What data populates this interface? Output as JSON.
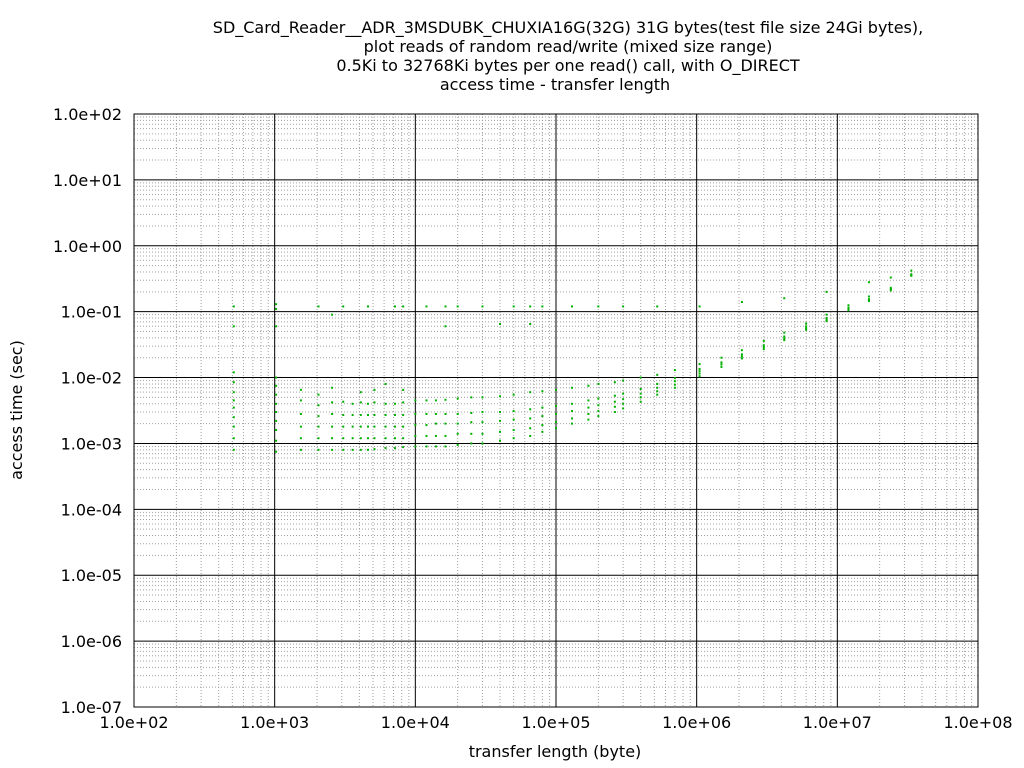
{
  "chart_data": {
    "type": "scatter",
    "title_lines": [
      "SD_Card_Reader__ADR_3MSDUBK_CHUXIA16G(32G) 31G bytes(test file size 24Gi bytes),",
      "plot reads of random read/write (mixed size range)",
      "0.5Ki to 32768Ki bytes per one read() call, with O_DIRECT",
      "access time - transfer length"
    ],
    "xlabel": "transfer length (byte)",
    "ylabel": "access time (sec)",
    "x_scale": "log",
    "y_scale": "log",
    "xlim": [
      100,
      100000000
    ],
    "ylim": [
      1e-07,
      100
    ],
    "x_ticks": [
      {
        "value": 100,
        "label": "1.0e+02"
      },
      {
        "value": 1000,
        "label": "1.0e+03"
      },
      {
        "value": 10000,
        "label": "1.0e+04"
      },
      {
        "value": 100000,
        "label": "1.0e+05"
      },
      {
        "value": 1000000,
        "label": "1.0e+06"
      },
      {
        "value": 10000000,
        "label": "1.0e+07"
      },
      {
        "value": 100000000,
        "label": "1.0e+08"
      }
    ],
    "y_ticks": [
      {
        "value": 1e-07,
        "label": "1.0e-07"
      },
      {
        "value": 1e-06,
        "label": "1.0e-06"
      },
      {
        "value": 1e-05,
        "label": "1.0e-05"
      },
      {
        "value": 0.0001,
        "label": "1.0e-04"
      },
      {
        "value": 0.001,
        "label": "1.0e-03"
      },
      {
        "value": 0.01,
        "label": "1.0e-02"
      },
      {
        "value": 0.1,
        "label": "1.0e-01"
      },
      {
        "value": 1,
        "label": "1.0e+00"
      },
      {
        "value": 10,
        "label": "1.0e+01"
      },
      {
        "value": 100,
        "label": "1.0e+02"
      }
    ],
    "grid": true,
    "point_color": "#00b000",
    "series": [
      {
        "points": [
          [
            512,
            0.0008
          ],
          [
            512,
            0.0012
          ],
          [
            512,
            0.0018
          ],
          [
            512,
            0.0025
          ],
          [
            512,
            0.0035
          ],
          [
            512,
            0.0045
          ],
          [
            512,
            0.006
          ],
          [
            512,
            0.0085
          ],
          [
            512,
            0.012
          ],
          [
            512,
            0.06
          ],
          [
            512,
            0.12
          ],
          [
            1024,
            0.00075
          ],
          [
            1024,
            0.0011
          ],
          [
            1024,
            0.0016
          ],
          [
            1024,
            0.0022
          ],
          [
            1024,
            0.003
          ],
          [
            1024,
            0.004
          ],
          [
            1024,
            0.0055
          ],
          [
            1024,
            0.0075
          ],
          [
            1024,
            0.01
          ],
          [
            1024,
            0.06
          ],
          [
            1024,
            0.11
          ],
          [
            1024,
            0.13
          ],
          [
            1536,
            0.0008
          ],
          [
            1536,
            0.0012
          ],
          [
            1536,
            0.0018
          ],
          [
            1536,
            0.0028
          ],
          [
            1536,
            0.0045
          ],
          [
            1536,
            0.0065
          ],
          [
            2048,
            0.0008
          ],
          [
            2048,
            0.0012
          ],
          [
            2048,
            0.0018
          ],
          [
            2048,
            0.0026
          ],
          [
            2048,
            0.0038
          ],
          [
            2048,
            0.0055
          ],
          [
            2048,
            0.12
          ],
          [
            2560,
            0.0008
          ],
          [
            2560,
            0.0012
          ],
          [
            2560,
            0.0018
          ],
          [
            2560,
            0.0028
          ],
          [
            2560,
            0.0042
          ],
          [
            2560,
            0.007
          ],
          [
            2560,
            0.09
          ],
          [
            3072,
            0.0008
          ],
          [
            3072,
            0.0012
          ],
          [
            3072,
            0.0018
          ],
          [
            3072,
            0.0027
          ],
          [
            3072,
            0.0043
          ],
          [
            3072,
            0.12
          ],
          [
            3584,
            0.0008
          ],
          [
            3584,
            0.0012
          ],
          [
            3584,
            0.0018
          ],
          [
            3584,
            0.0027
          ],
          [
            3584,
            0.004
          ],
          [
            4096,
            0.0008
          ],
          [
            4096,
            0.0012
          ],
          [
            4096,
            0.0018
          ],
          [
            4096,
            0.0027
          ],
          [
            4096,
            0.0042
          ],
          [
            4096,
            0.006
          ],
          [
            4608,
            0.0008
          ],
          [
            4608,
            0.0012
          ],
          [
            4608,
            0.0018
          ],
          [
            4608,
            0.0027
          ],
          [
            4608,
            0.004
          ],
          [
            4608,
            0.12
          ],
          [
            5120,
            0.00082
          ],
          [
            5120,
            0.0012
          ],
          [
            5120,
            0.0018
          ],
          [
            5120,
            0.0027
          ],
          [
            5120,
            0.0042
          ],
          [
            5120,
            0.0065
          ],
          [
            6144,
            0.00085
          ],
          [
            6144,
            0.0012
          ],
          [
            6144,
            0.0018
          ],
          [
            6144,
            0.0027
          ],
          [
            6144,
            0.004
          ],
          [
            6144,
            0.008
          ],
          [
            7168,
            0.00085
          ],
          [
            7168,
            0.0012
          ],
          [
            7168,
            0.0018
          ],
          [
            7168,
            0.0027
          ],
          [
            7168,
            0.004
          ],
          [
            7168,
            0.12
          ],
          [
            8192,
            0.00088
          ],
          [
            8192,
            0.0012
          ],
          [
            8192,
            0.0018
          ],
          [
            8192,
            0.0027
          ],
          [
            8192,
            0.0042
          ],
          [
            8192,
            0.0065
          ],
          [
            8192,
            0.12
          ],
          [
            10000,
            0.0009
          ],
          [
            10000,
            0.0013
          ],
          [
            10000,
            0.0019
          ],
          [
            10000,
            0.0028
          ],
          [
            10000,
            0.0045
          ],
          [
            12000,
            0.0009
          ],
          [
            12000,
            0.0013
          ],
          [
            12000,
            0.0019
          ],
          [
            12000,
            0.0028
          ],
          [
            12000,
            0.0045
          ],
          [
            12000,
            0.12
          ],
          [
            14000,
            0.0009
          ],
          [
            14000,
            0.0013
          ],
          [
            14000,
            0.002
          ],
          [
            14000,
            0.0028
          ],
          [
            14000,
            0.0045
          ],
          [
            16384,
            0.0009
          ],
          [
            16384,
            0.0013
          ],
          [
            16384,
            0.002
          ],
          [
            16384,
            0.0028
          ],
          [
            16384,
            0.0046
          ],
          [
            16384,
            0.12
          ],
          [
            16384,
            0.06
          ],
          [
            20000,
            0.00095
          ],
          [
            20000,
            0.0014
          ],
          [
            20000,
            0.002
          ],
          [
            20000,
            0.0028
          ],
          [
            20000,
            0.0048
          ],
          [
            20000,
            0.12
          ],
          [
            25000,
            0.001
          ],
          [
            25000,
            0.0014
          ],
          [
            25000,
            0.0021
          ],
          [
            25000,
            0.0029
          ],
          [
            25000,
            0.005
          ],
          [
            30000,
            0.001
          ],
          [
            30000,
            0.0014
          ],
          [
            30000,
            0.0021
          ],
          [
            30000,
            0.003
          ],
          [
            30000,
            0.005
          ],
          [
            30000,
            0.12
          ],
          [
            40000,
            0.0011
          ],
          [
            40000,
            0.0015
          ],
          [
            40000,
            0.0022
          ],
          [
            40000,
            0.003
          ],
          [
            40000,
            0.0052
          ],
          [
            40000,
            0.065
          ],
          [
            50000,
            0.0012
          ],
          [
            50000,
            0.0016
          ],
          [
            50000,
            0.0023
          ],
          [
            50000,
            0.0031
          ],
          [
            50000,
            0.0055
          ],
          [
            50000,
            0.12
          ],
          [
            65536,
            0.0013
          ],
          [
            65536,
            0.0017
          ],
          [
            65536,
            0.0024
          ],
          [
            65536,
            0.0033
          ],
          [
            65536,
            0.006
          ],
          [
            65536,
            0.12
          ],
          [
            65536,
            0.065
          ],
          [
            80000,
            0.0015
          ],
          [
            80000,
            0.0019
          ],
          [
            80000,
            0.0026
          ],
          [
            80000,
            0.0035
          ],
          [
            80000,
            0.0062
          ],
          [
            80000,
            0.12
          ],
          [
            100000,
            0.0017
          ],
          [
            100000,
            0.0021
          ],
          [
            100000,
            0.0028
          ],
          [
            100000,
            0.0037
          ],
          [
            100000,
            0.0065
          ],
          [
            130000,
            0.002
          ],
          [
            130000,
            0.0024
          ],
          [
            130000,
            0.0031
          ],
          [
            130000,
            0.004
          ],
          [
            130000,
            0.007
          ],
          [
            130000,
            0.12
          ],
          [
            170000,
            0.0023
          ],
          [
            170000,
            0.0028
          ],
          [
            170000,
            0.0035
          ],
          [
            170000,
            0.0045
          ],
          [
            170000,
            0.0075
          ],
          [
            200000,
            0.0026
          ],
          [
            200000,
            0.0031
          ],
          [
            200000,
            0.0038
          ],
          [
            200000,
            0.0048
          ],
          [
            200000,
            0.008
          ],
          [
            200000,
            0.12
          ],
          [
            262144,
            0.003
          ],
          [
            262144,
            0.0036
          ],
          [
            262144,
            0.0043
          ],
          [
            262144,
            0.0053
          ],
          [
            262144,
            0.0085
          ],
          [
            300000,
            0.0034
          ],
          [
            300000,
            0.004
          ],
          [
            300000,
            0.0047
          ],
          [
            300000,
            0.0057
          ],
          [
            300000,
            0.009
          ],
          [
            300000,
            0.12
          ],
          [
            400000,
            0.0043
          ],
          [
            400000,
            0.005
          ],
          [
            400000,
            0.0057
          ],
          [
            400000,
            0.0067
          ],
          [
            400000,
            0.01
          ],
          [
            524288,
            0.0055
          ],
          [
            524288,
            0.0062
          ],
          [
            524288,
            0.007
          ],
          [
            524288,
            0.008
          ],
          [
            524288,
            0.011
          ],
          [
            524288,
            0.12
          ],
          [
            700000,
            0.007
          ],
          [
            700000,
            0.0078
          ],
          [
            700000,
            0.0088
          ],
          [
            700000,
            0.0098
          ],
          [
            700000,
            0.013
          ],
          [
            1048576,
            0.0105
          ],
          [
            1048576,
            0.0115
          ],
          [
            1048576,
            0.0125
          ],
          [
            1048576,
            0.0135
          ],
          [
            1048576,
            0.016
          ],
          [
            1048576,
            0.12
          ],
          [
            1500000,
            0.0145
          ],
          [
            1500000,
            0.0158
          ],
          [
            1500000,
            0.017
          ],
          [
            1500000,
            0.02
          ],
          [
            2097152,
            0.0195
          ],
          [
            2097152,
            0.021
          ],
          [
            2097152,
            0.0225
          ],
          [
            2097152,
            0.026
          ],
          [
            2097152,
            0.14
          ],
          [
            3000000,
            0.027
          ],
          [
            3000000,
            0.029
          ],
          [
            3000000,
            0.031
          ],
          [
            3000000,
            0.036
          ],
          [
            4194304,
            0.037
          ],
          [
            4194304,
            0.039
          ],
          [
            4194304,
            0.042
          ],
          [
            4194304,
            0.048
          ],
          [
            4194304,
            0.16
          ],
          [
            6000000,
            0.053
          ],
          [
            6000000,
            0.056
          ],
          [
            6000000,
            0.06
          ],
          [
            6000000,
            0.066
          ],
          [
            8388608,
            0.072
          ],
          [
            8388608,
            0.076
          ],
          [
            8388608,
            0.08
          ],
          [
            8388608,
            0.09
          ],
          [
            8388608,
            0.2
          ],
          [
            12000000,
            0.105
          ],
          [
            12000000,
            0.11
          ],
          [
            12000000,
            0.115
          ],
          [
            12000000,
            0.125
          ],
          [
            16777216,
            0.145
          ],
          [
            16777216,
            0.15
          ],
          [
            16777216,
            0.155
          ],
          [
            16777216,
            0.17
          ],
          [
            16777216,
            0.28
          ],
          [
            24000000,
            0.21
          ],
          [
            24000000,
            0.22
          ],
          [
            24000000,
            0.23
          ],
          [
            24000000,
            0.33
          ],
          [
            33554432,
            0.35
          ],
          [
            33554432,
            0.36
          ],
          [
            33554432,
            0.37
          ],
          [
            33554432,
            0.42
          ]
        ]
      }
    ]
  }
}
